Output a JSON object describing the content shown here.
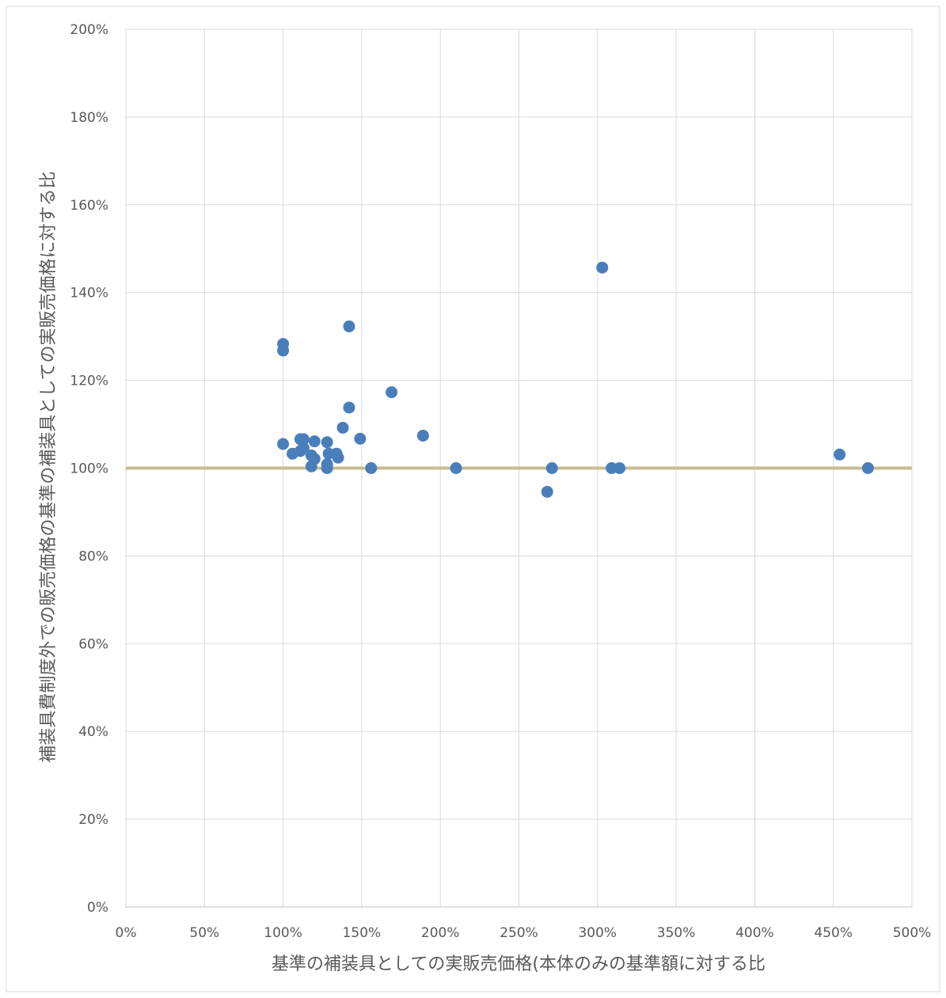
{
  "chart_data": {
    "type": "scatter",
    "title": "",
    "xlabel": "基準の補装具としての実販売価格(本体のみの基準額に対する比",
    "ylabel": "補装具費制度外での販売価格の基準の補装具としての実販売価格に対する比",
    "xlim": [
      0,
      5
    ],
    "ylim": [
      0,
      2
    ],
    "x_ticks": [
      0,
      0.5,
      1,
      1.5,
      2,
      2.5,
      3,
      3.5,
      4,
      4.5,
      5
    ],
    "x_tick_labels": [
      "0%",
      "50%",
      "100%",
      "150%",
      "200%",
      "250%",
      "300%",
      "350%",
      "400%",
      "450%",
      "500%"
    ],
    "y_ticks": [
      0,
      0.2,
      0.4,
      0.6,
      0.8,
      1,
      1.2,
      1.4,
      1.6,
      1.8,
      2
    ],
    "y_tick_labels": [
      "0%",
      "20%",
      "40%",
      "60%",
      "80%",
      "100%",
      "120%",
      "140%",
      "160%",
      "180%",
      "200%"
    ],
    "grid": true,
    "legend": "none",
    "reference_line": {
      "y": 1.0,
      "color": "#c9bc92"
    },
    "series": [
      {
        "color": "#4a7ebb",
        "points": [
          {
            "x": 1.0,
            "y": 1.283
          },
          {
            "x": 1.0,
            "y": 1.268
          },
          {
            "x": 1.0,
            "y": 1.055
          },
          {
            "x": 1.06,
            "y": 1.033
          },
          {
            "x": 1.11,
            "y": 1.066
          },
          {
            "x": 1.11,
            "y": 1.039
          },
          {
            "x": 1.13,
            "y": 1.066
          },
          {
            "x": 1.13,
            "y": 1.046
          },
          {
            "x": 1.18,
            "y": 1.029
          },
          {
            "x": 1.18,
            "y": 1.004
          },
          {
            "x": 1.2,
            "y": 1.061
          },
          {
            "x": 1.2,
            "y": 1.021
          },
          {
            "x": 1.28,
            "y": 1.059
          },
          {
            "x": 1.28,
            "y": 1.009
          },
          {
            "x": 1.28,
            "y": 1.0
          },
          {
            "x": 1.29,
            "y": 1.033
          },
          {
            "x": 1.34,
            "y": 1.033
          },
          {
            "x": 1.35,
            "y": 1.024
          },
          {
            "x": 1.38,
            "y": 1.092
          },
          {
            "x": 1.42,
            "y": 1.323
          },
          {
            "x": 1.42,
            "y": 1.138
          },
          {
            "x": 1.49,
            "y": 1.067
          },
          {
            "x": 1.56,
            "y": 1.0
          },
          {
            "x": 1.69,
            "y": 1.173
          },
          {
            "x": 1.89,
            "y": 1.074
          },
          {
            "x": 2.1,
            "y": 1.0
          },
          {
            "x": 2.68,
            "y": 0.946
          },
          {
            "x": 2.71,
            "y": 1.0
          },
          {
            "x": 3.03,
            "y": 1.457
          },
          {
            "x": 3.09,
            "y": 1.0
          },
          {
            "x": 3.14,
            "y": 1.0
          },
          {
            "x": 4.54,
            "y": 1.031
          },
          {
            "x": 4.72,
            "y": 1.0
          }
        ]
      }
    ]
  },
  "colors": {
    "grid": "#d9d9d9",
    "axis": "#bfbfbf",
    "marker": "#4a7ebb",
    "reference_line": "#c9bc92",
    "text": "#595959",
    "frame": "#d9d9d9"
  }
}
